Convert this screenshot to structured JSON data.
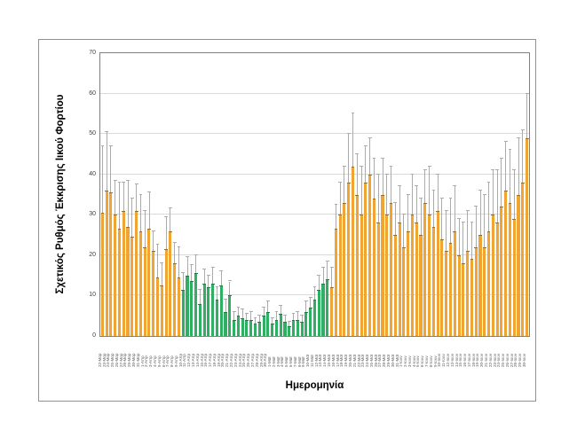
{
  "chart_data": {
    "type": "bar",
    "title": "",
    "ylabel": "Σχετικός Ρυθμός Έκκρισης Ιικού Φορτίου",
    "xlabel": "Ημερομηνία",
    "ylim": [
      0,
      70
    ],
    "yticks": [
      0,
      10,
      20,
      30,
      40,
      50,
      60,
      70
    ],
    "grid": true,
    "legend": "none",
    "error_bars": "upper",
    "green_start_index": 19,
    "green_end_index": 53,
    "colors": {
      "orange_bar": "#F0A432",
      "green_bar": "#2FAF62",
      "whisker": "#ABABAB",
      "cap_on_orange": "#9C6B22",
      "cap_on_green": "#1E7B45",
      "gridline": "#D9D9D9",
      "plot_border": "#808080",
      "frame_border": "#919191"
    },
    "categories": [
      "22-Μαρ",
      "23-Μαρ",
      "24-Μαρ",
      "25-Μαρ",
      "26-Μαρ",
      "27-Μαρ",
      "28-Μαρ",
      "29-Μαρ",
      "30-Μαρ",
      "31-Μαρ",
      "1-Απρ",
      "2-Απρ",
      "3-Απρ",
      "4-Απρ",
      "5-Απρ",
      "6-Απρ",
      "7-Απρ",
      "8-Απρ",
      "9-Απρ",
      "10-Απρ",
      "11-Απρ",
      "12-Απρ",
      "13-Απρ",
      "14-Απρ",
      "15-Απρ",
      "16-Απρ",
      "17-Απρ",
      "18-Απρ",
      "19-Απρ",
      "20-Απρ",
      "21-Απρ",
      "22-Απρ",
      "23-Απρ",
      "24-Απρ",
      "25-Απρ",
      "26-Απρ",
      "27-Απρ",
      "28-Απρ",
      "29-Απρ",
      "30-Απρ",
      "1-Μαϊ",
      "2-Μαϊ",
      "3-Μαϊ",
      "4-Μαϊ",
      "5-Μαϊ",
      "6-Μαϊ",
      "7-Μαϊ",
      "8-Μαϊ",
      "9-Μαϊ",
      "10-Μαϊ",
      "11-Μαϊ",
      "12-Μαϊ",
      "13-Μαϊ",
      "14-Μαϊ",
      "15-Μαϊ",
      "16-Μαϊ",
      "17-Μαϊ",
      "18-Μαϊ",
      "19-Μαϊ",
      "20-Μαϊ",
      "21-Μαϊ",
      "22-Μαϊ",
      "23-Μαϊ",
      "24-Μαϊ",
      "25-Μαϊ",
      "26-Μαϊ",
      "27-Μαϊ",
      "28-Μαϊ",
      "29-Μαϊ",
      "30-Μαϊ",
      "31-Μαϊ",
      "1-Ιουν",
      "2-Ιουν",
      "3-Ιουν",
      "4-Ιουν",
      "5-Ιουν",
      "6-Ιουν",
      "7-Ιουν",
      "8-Ιουν",
      "9-Ιουν",
      "10-Ιουν",
      "11-Ιουν",
      "12-Ιουν",
      "13-Ιουν",
      "14-Ιουν",
      "15-Ιουν",
      "16-Ιουν",
      "17-Ιουν",
      "18-Ιουν",
      "19-Ιουν",
      "20-Ιουν",
      "21-Ιουν",
      "22-Ιουν",
      "23-Ιουν",
      "24-Ιουν",
      "25-Ιουν",
      "26-Ιουν",
      "27-Ιουν",
      "28-Ιουν",
      "29-Ιουν",
      "30-Ιουν"
    ],
    "values": [
      30.5,
      36,
      35.5,
      30,
      26.5,
      31,
      27,
      24.5,
      31,
      26,
      22,
      26.5,
      21,
      14.5,
      12.5,
      21.5,
      26,
      18,
      14.5,
      11.5,
      15,
      13.5,
      15.5,
      8,
      13,
      12,
      13,
      9,
      12.5,
      6,
      10,
      4,
      5,
      4.5,
      4,
      4,
      3,
      3.5,
      5,
      6,
      3,
      4,
      5.5,
      3.5,
      2.5,
      4,
      4,
      3.5,
      6,
      7,
      9,
      11.5,
      13,
      14,
      12,
      26.5,
      30,
      33,
      38,
      42,
      35,
      30,
      38,
      40,
      34,
      28,
      35,
      30,
      33,
      25,
      28,
      22,
      26,
      30,
      28,
      25,
      33,
      30,
      27,
      31,
      24,
      21,
      23,
      26,
      20,
      18,
      21,
      19,
      22,
      25,
      22,
      26,
      30,
      28,
      32,
      36,
      33,
      29,
      35,
      38,
      49
    ],
    "errors_upper": [
      16.5,
      14.5,
      11.5,
      8.5,
      11.5,
      7,
      11.5,
      9.5,
      6.5,
      9,
      9,
      9,
      5,
      8,
      5.5,
      8,
      5.5,
      5,
      7.5,
      4,
      4.5,
      4,
      4.5,
      3.5,
      3.5,
      3,
      4,
      3,
      3.5,
      3,
      3.5,
      2,
      2,
      2,
      1.5,
      2,
      1.5,
      1.5,
      2,
      2.5,
      1.5,
      2,
      2,
      1.5,
      1,
      1.5,
      2,
      1.5,
      2.5,
      2.5,
      3,
      3.5,
      4,
      4.5,
      5,
      6,
      8,
      9,
      12,
      13,
      10,
      12,
      9,
      9,
      10,
      12,
      9,
      10,
      9,
      8,
      9,
      8,
      9,
      10,
      9,
      9,
      8,
      12,
      9,
      9,
      10,
      10,
      11,
      11,
      9,
      10,
      10,
      9,
      10,
      11,
      13,
      12,
      11,
      13,
      12,
      12,
      13,
      12,
      14,
      13,
      11
    ]
  }
}
